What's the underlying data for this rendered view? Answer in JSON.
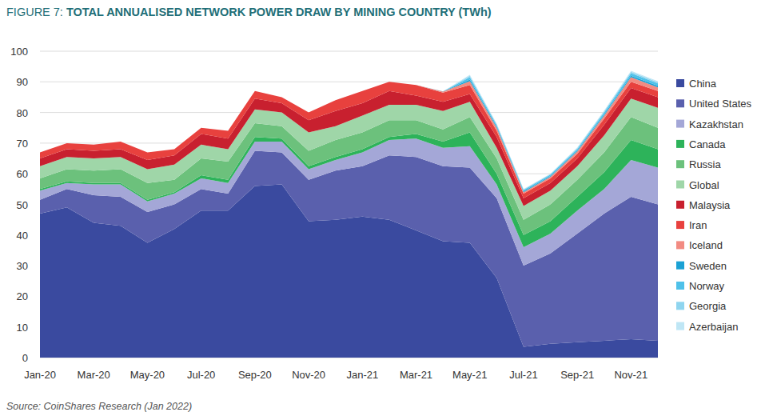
{
  "chart_data": {
    "type": "area",
    "stacked": true,
    "grid": true,
    "legend": "right",
    "title": "FIGURE 7: TOTAL ANNUALISED NETWORK POWER DRAW BY MINING COUNTRY (TWh)",
    "source": "Source: CoinShares Research (Jan 2022)",
    "categories": [
      "Jan-20",
      null,
      "Mar-20",
      null,
      "May-20",
      null,
      "Jul-20",
      null,
      "Sep-20",
      null,
      "Nov-20",
      null,
      "Jan-21",
      null,
      "Mar-21",
      null,
      "May-21",
      null,
      "Jul-21",
      null,
      "Sep-21",
      null,
      "Nov-21",
      null
    ],
    "ylim": [
      0,
      100
    ],
    "yticks": [
      0,
      10,
      20,
      30,
      40,
      50,
      60,
      70,
      80,
      90,
      100
    ],
    "series": [
      {
        "name": "China",
        "color": "#3a4a9f",
        "values": [
          47,
          49,
          44,
          43,
          37.5,
          42,
          48,
          48,
          56,
          56.5,
          44.5,
          45,
          46,
          45,
          41.5,
          38,
          37.5,
          26,
          3.5,
          4.5,
          5,
          5.5,
          6,
          5.5
        ]
      },
      {
        "name": "United States",
        "color": "#5a60ad",
        "values": [
          4.5,
          6,
          9,
          9.5,
          10,
          8,
          7,
          5.5,
          11.5,
          10.5,
          13.5,
          16,
          16.5,
          21,
          24,
          24.5,
          24.5,
          26,
          26.5,
          29.5,
          35.5,
          41.5,
          46.5,
          44.5
        ]
      },
      {
        "name": "Kazakhstan",
        "color": "#a4a7d7",
        "values": [
          3,
          2,
          3.5,
          4,
          3.5,
          3.5,
          3.5,
          3.5,
          3,
          3.5,
          3.5,
          3.5,
          4.5,
          5,
          6,
          6,
          7,
          4.5,
          6,
          6.5,
          7.5,
          8,
          12,
          12
        ]
      },
      {
        "name": "Canada",
        "color": "#2db35a",
        "values": [
          0.5,
          0.5,
          0.5,
          0.5,
          0.5,
          0.5,
          1,
          1,
          1.5,
          1,
          1,
          1,
          1,
          1,
          1.5,
          2,
          4.5,
          3.5,
          4,
          4,
          4.5,
          5.5,
          6.5,
          6
        ]
      },
      {
        "name": "Russia",
        "color": "#6cc17c",
        "values": [
          3.5,
          4,
          4,
          4.5,
          5.5,
          4,
          5.5,
          6,
          4.5,
          4,
          5,
          5.5,
          5.5,
          5.5,
          4.5,
          4,
          5,
          5,
          5,
          5.5,
          5.5,
          6.5,
          7.5,
          7
        ]
      },
      {
        "name": "Global",
        "color": "#9fd6a8",
        "values": [
          4,
          4,
          4,
          4,
          4.5,
          5,
          4.5,
          4,
          4.5,
          4.5,
          6,
          4.5,
          5.5,
          5,
          5,
          6,
          5,
          3.5,
          4.5,
          4.5,
          4.5,
          5.5,
          6,
          6.5
        ]
      },
      {
        "name": "Malaysia",
        "color": "#c8202f",
        "values": [
          2.5,
          2.5,
          2.5,
          2.5,
          3,
          3,
          3.5,
          3.5,
          3.5,
          3,
          4,
          5,
          4,
          4.5,
          3,
          3,
          2.5,
          3.5,
          2.5,
          2.5,
          2.5,
          3.5,
          3.5,
          3.5
        ]
      },
      {
        "name": "Iran",
        "color": "#e8413e",
        "values": [
          2,
          2,
          2,
          2.5,
          2.5,
          2,
          2,
          2.5,
          2.5,
          2,
          2.5,
          3.5,
          4,
          3,
          3.5,
          3,
          3,
          2,
          1.5,
          1.5,
          1.5,
          2,
          2,
          2
        ]
      },
      {
        "name": "Iceland",
        "color": "#f28b82",
        "values": [
          0,
          0,
          0,
          0,
          0,
          0,
          0,
          0,
          0,
          0,
          0,
          0,
          0,
          0,
          0,
          0.3,
          1.2,
          1,
          0.5,
          0.5,
          0.8,
          1,
          1.5,
          1.2
        ]
      },
      {
        "name": "Sweden",
        "color": "#1aa1d4",
        "values": [
          0,
          0,
          0,
          0,
          0,
          0,
          0,
          0,
          0,
          0,
          0,
          0,
          0,
          0,
          0,
          0.1,
          0.5,
          0.4,
          0.3,
          0.3,
          0.3,
          0.4,
          0.5,
          0.5
        ]
      },
      {
        "name": "Norway",
        "color": "#4fc1e9",
        "values": [
          0,
          0,
          0,
          0,
          0,
          0,
          0,
          0,
          0,
          0,
          0,
          0,
          0,
          0,
          0,
          0,
          0.8,
          0.5,
          0.4,
          0.4,
          0.5,
          0.6,
          0.8,
          0.8
        ]
      },
      {
        "name": "Georgia",
        "color": "#8fd5ef",
        "values": [
          0,
          0,
          0,
          0,
          0,
          0,
          0,
          0,
          0,
          0,
          0,
          0,
          0,
          0,
          0,
          0,
          0.5,
          0.3,
          0.2,
          0.2,
          0.3,
          0.4,
          0.5,
          0.4
        ]
      },
      {
        "name": "Azerbaijan",
        "color": "#bfe6f5",
        "values": [
          0,
          0,
          0,
          0,
          0,
          0,
          0,
          0,
          0,
          0,
          0,
          0,
          0,
          0,
          0,
          0,
          0.3,
          0.2,
          0.1,
          0.1,
          0.2,
          0.2,
          0.3,
          0.3
        ]
      }
    ]
  }
}
